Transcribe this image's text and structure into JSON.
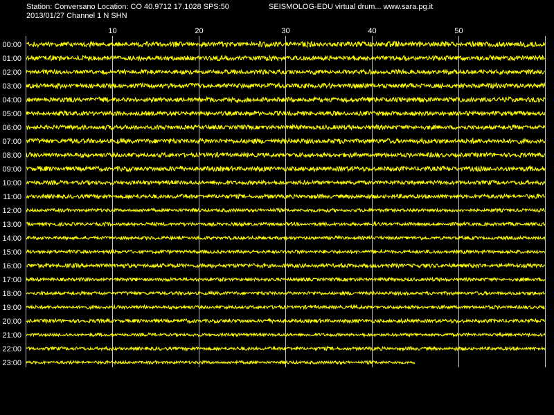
{
  "header": {
    "station_line": "Station: Conversano Location: CO 40.9712 17.1028 SPS:50",
    "brand_line": "SEISMOLOG-EDU virtual drum... www.sara.pg.it",
    "date_line": "2013/01/27  Channel 1 N SHN"
  },
  "chart_data": {
    "type": "line",
    "title": "",
    "xlabel": "",
    "ylabel": "",
    "x_unit": "minutes",
    "xlim": [
      0,
      60
    ],
    "x_ticks": [
      10,
      20,
      30,
      40,
      50
    ],
    "grid": true,
    "hour_labels": [
      "00:00",
      "01:00",
      "02:00",
      "03:00",
      "04:00",
      "05:00",
      "06:00",
      "07:00",
      "08:00",
      "09:00",
      "10:00",
      "11:00",
      "12:00",
      "13:00",
      "14:00",
      "15:00",
      "16:00",
      "17:00",
      "18:00",
      "19:00",
      "20:00",
      "21:00",
      "22:00",
      "23:00"
    ],
    "trace_end_minutes": [
      60,
      60,
      60,
      60,
      60,
      60,
      60,
      60,
      60,
      60,
      60,
      60,
      60,
      60,
      60,
      60,
      60,
      60,
      60,
      60,
      60,
      60,
      60,
      45
    ],
    "trace_amplitude": [
      0.7,
      0.65,
      0.6,
      0.65,
      0.65,
      0.6,
      0.6,
      0.65,
      0.6,
      0.65,
      0.55,
      0.55,
      0.45,
      0.45,
      0.45,
      0.45,
      0.55,
      0.45,
      0.45,
      0.45,
      0.5,
      0.4,
      0.45,
      0.4
    ],
    "colors": {
      "background": "#000000",
      "trace": "#ffff00",
      "grid": "#c0c0c0",
      "text": "#ffffff"
    }
  }
}
